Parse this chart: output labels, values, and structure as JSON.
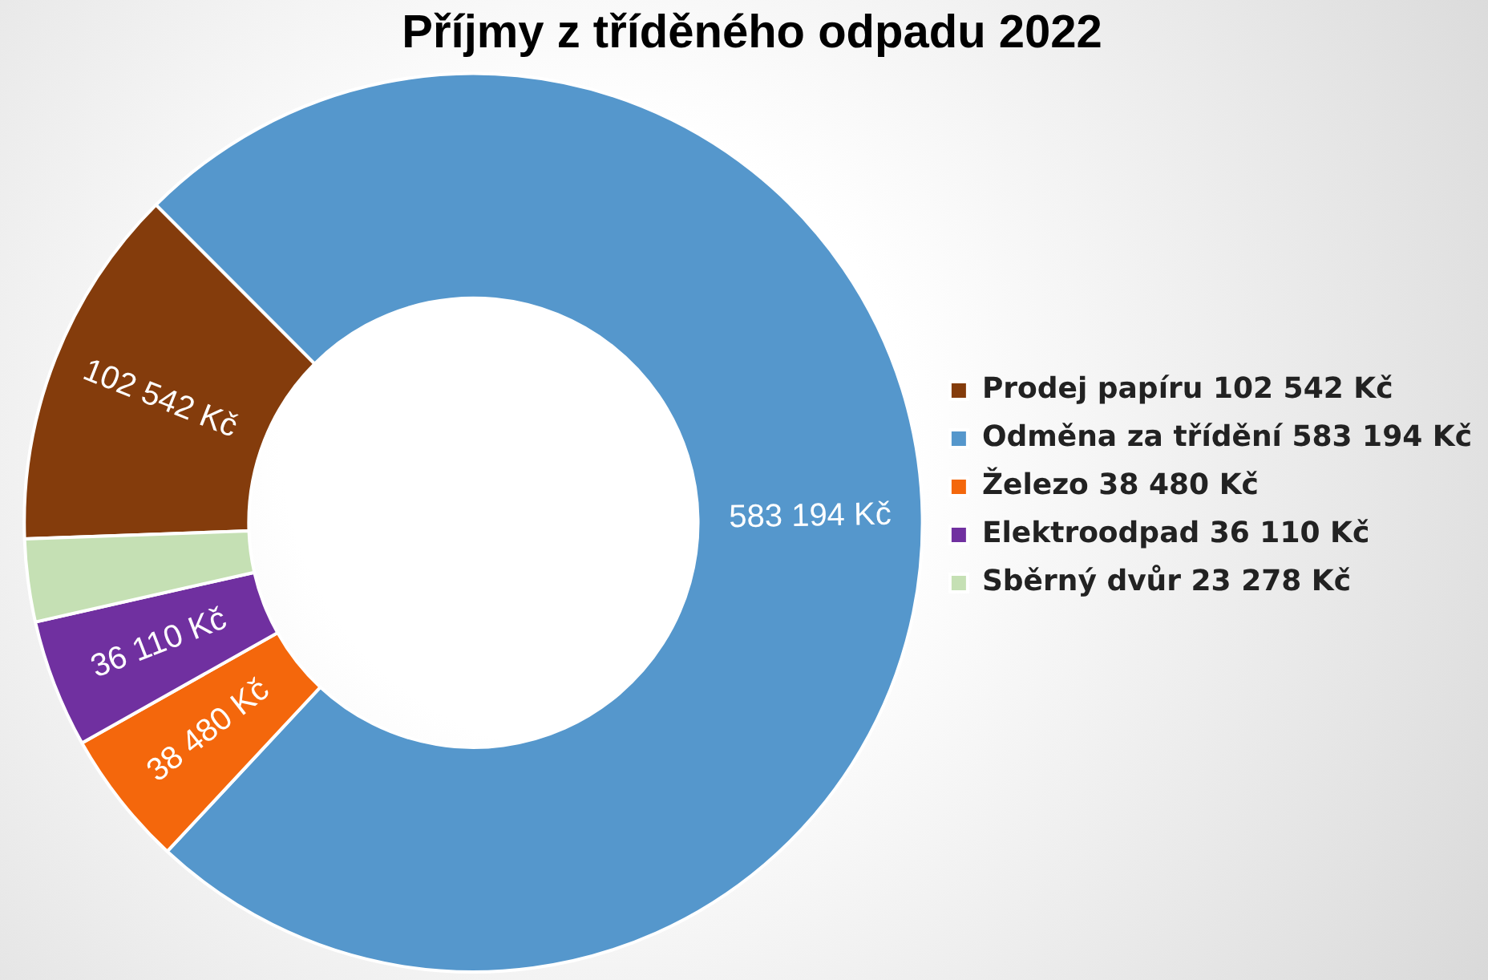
{
  "chart_data": {
    "type": "donut",
    "title": "Příjmy z tříděného odpadu 2022",
    "categories": [
      "Prodej papíru 102 542 Kč",
      "Odměna za třídění 583 194 Kč",
      "Železo 38 480 Kč",
      "Elektroodpad 36 110 Kč",
      "Sběrný dvůr 23 278 Kč"
    ],
    "values": [
      102542,
      583194,
      38480,
      36110,
      23278
    ],
    "colors": [
      "#843c0c",
      "#5597cc",
      "#f4670c",
      "#7030a0",
      "#c5e0b4"
    ],
    "value_labels": [
      "102 542 Kč",
      "583 194 Kč",
      "38 480 Kč",
      "36 110 Kč",
      null
    ],
    "legend": "right"
  }
}
